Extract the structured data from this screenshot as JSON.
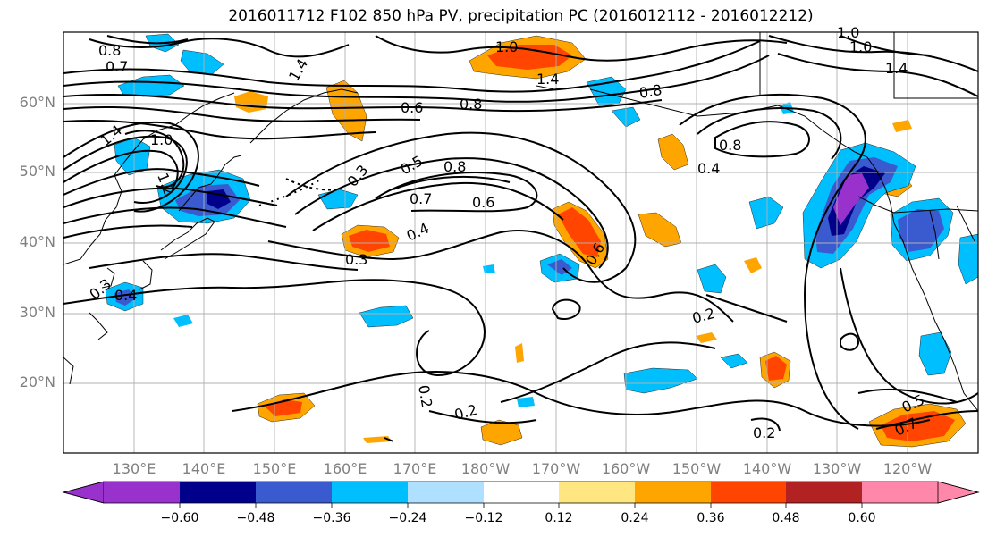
{
  "title": "2016011712 F102 850 hPa PV, precipitation PC (2016012112 - 2016012212)",
  "map": {
    "lat_labels": [
      "60°N",
      "50°N",
      "40°N",
      "30°N",
      "20°N"
    ],
    "lon_labels": [
      "130°E",
      "140°E",
      "150°E",
      "160°E",
      "170°E",
      "180°W",
      "170°W",
      "160°W",
      "150°W",
      "140°W",
      "130°W",
      "120°W"
    ],
    "contour_labels": [
      "0.8",
      "0.7",
      "1.4",
      "1.0",
      "1.2",
      "1.0",
      "1.4",
      "1.4",
      "1.0",
      "0.6",
      "0.8",
      "0.8",
      "0.4",
      "1.4",
      "1.0",
      "0.8",
      "0.3",
      "0.5",
      "0.7",
      "0.8",
      "0.6",
      "0.4",
      "0.3",
      "0.6",
      "0.3",
      "0.4",
      "0.2",
      "0.2",
      "0.2",
      "0.2",
      "0.5",
      "0.7"
    ],
    "colors": {
      "grid": "#b0b0b0",
      "contour": "#000000",
      "coast": "#000000"
    }
  },
  "colorbar": {
    "ticks": [
      "−0.60",
      "−0.48",
      "−0.36",
      "−0.24",
      "−0.12",
      "0.12",
      "0.24",
      "0.36",
      "0.48",
      "0.60"
    ],
    "bins": [
      "#9932cc",
      "#00008b",
      "#3a5bd0",
      "#00bfff",
      "#b0e0ff",
      "#ffffff",
      "#ffe680",
      "#ffa500",
      "#ff4500",
      "#b22222",
      "#ff88aa"
    ]
  }
}
